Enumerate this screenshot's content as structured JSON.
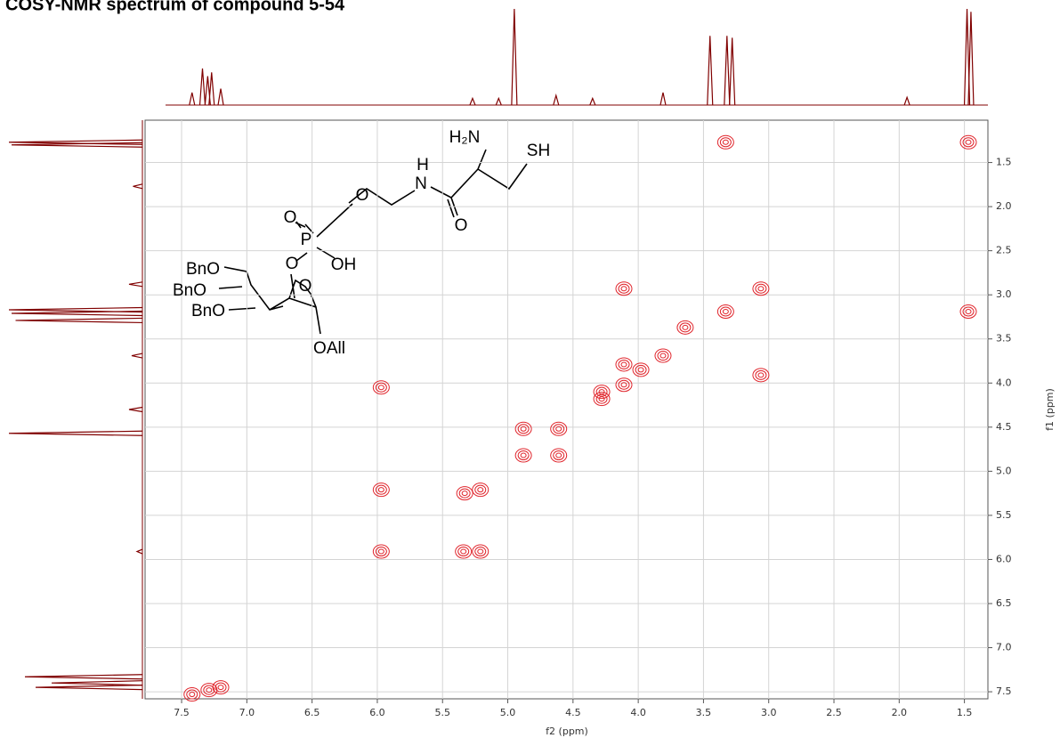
{
  "chart_data": {
    "type": "contour",
    "title": "COSY-NMR spectrum of compound 5-54",
    "xlabel": "f2 (ppm)",
    "ylabel": "f1 (ppm)",
    "xlim": [
      7.78,
      1.32
    ],
    "ylim": [
      1.02,
      7.58
    ],
    "xticks": [
      7.5,
      {
        "value": 7,
        "label": "7.0"
      },
      6.5,
      {
        "value": 6,
        "label": "6.0"
      },
      5.5,
      {
        "value": 5,
        "label": "5.0"
      },
      4.5,
      {
        "value": 4,
        "label": "4.0"
      },
      3.5,
      {
        "value": 3,
        "label": "3.0"
      },
      2.5,
      {
        "value": 2,
        "label": "2.0"
      },
      1.5
    ],
    "yticks": [
      1.5,
      {
        "value": 2,
        "label": "2.0"
      },
      2.5,
      {
        "value": 3,
        "label": "3.0"
      },
      3.5,
      {
        "value": 4,
        "label": "4.0"
      },
      4.5,
      {
        "value": 5,
        "label": "5.0"
      },
      5.5,
      {
        "value": 6,
        "label": "6.0"
      },
      6.5,
      {
        "value": 7,
        "label": "7.0"
      },
      7.5
    ],
    "grid": true,
    "color": "#e0242b",
    "x": [
      1.47,
      3.33,
      1.47,
      3.33,
      4.11,
      3.06,
      3.06,
      3.64,
      3.81,
      3.98,
      4.11,
      4.28,
      4.28,
      4.61,
      4.88,
      4.61,
      4.88,
      5.21,
      5.33,
      5.97,
      5.97,
      5.97,
      5.34,
      5.21,
      4.11,
      7.42,
      7.29,
      7.2
    ],
    "values": [
      1.27,
      1.27,
      3.19,
      3.19,
      2.93,
      2.93,
      3.91,
      3.37,
      3.69,
      3.85,
      4.02,
      4.1,
      4.18,
      4.52,
      4.52,
      4.82,
      4.82,
      5.21,
      5.25,
      5.21,
      5.91,
      4.05,
      5.91,
      5.91,
      3.79,
      7.53,
      7.48,
      7.45
    ],
    "f2_projection": {
      "color": "#800000",
      "shifts": [
        7.42,
        7.34,
        7.3,
        7.27,
        7.2,
        5.27,
        5.07,
        4.95,
        4.63,
        4.35,
        3.81,
        3.45,
        3.32,
        3.28,
        1.94,
        1.48,
        1.45
      ],
      "intensities": [
        13,
        38,
        30,
        34,
        17,
        7,
        7,
        100,
        10,
        7,
        13,
        72,
        72,
        70,
        8,
        100,
        97
      ]
    },
    "f1_projection": {
      "color": "#800000",
      "shifts": [
        1.27,
        1.3,
        1.77,
        2.88,
        3.17,
        3.21,
        3.29,
        3.69,
        4.3,
        4.57,
        5.91,
        7.33,
        7.4,
        7.45
      ],
      "intensities": [
        100,
        98,
        7,
        10,
        100,
        98,
        95,
        8,
        10,
        100,
        4,
        88,
        68,
        80
      ]
    }
  },
  "structure": {
    "labels": [
      "H₂N",
      "SH",
      "H",
      "N",
      "O",
      "O",
      "O",
      "P",
      "O",
      "OH",
      "BnO",
      "BnO",
      "BnO",
      "O",
      "OAll"
    ]
  }
}
